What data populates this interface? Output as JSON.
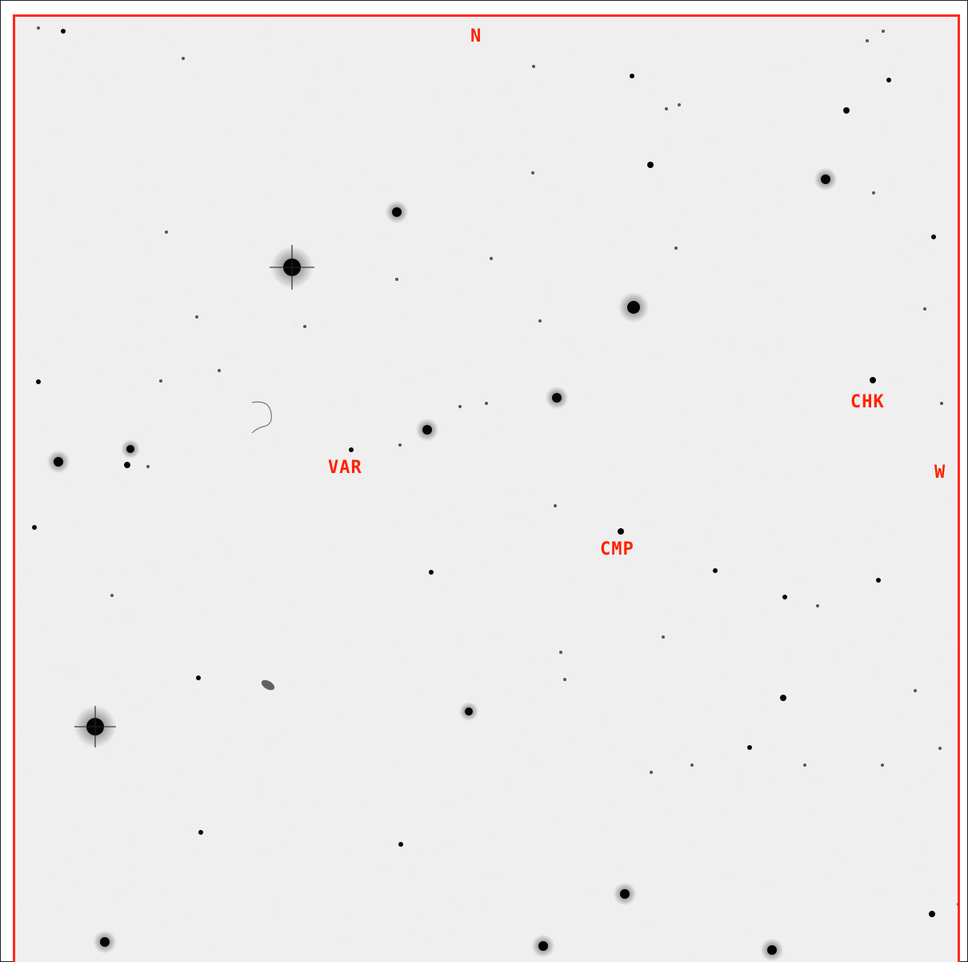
{
  "finder_chart": {
    "frame_color": "#ff2a1a",
    "label_color": "#ff2200",
    "background_color": "#efefef",
    "orientation": {
      "north": "N",
      "west": "W"
    },
    "targets": {
      "variable": "VAR",
      "comparison": "CMP",
      "check": "CHK"
    }
  }
}
